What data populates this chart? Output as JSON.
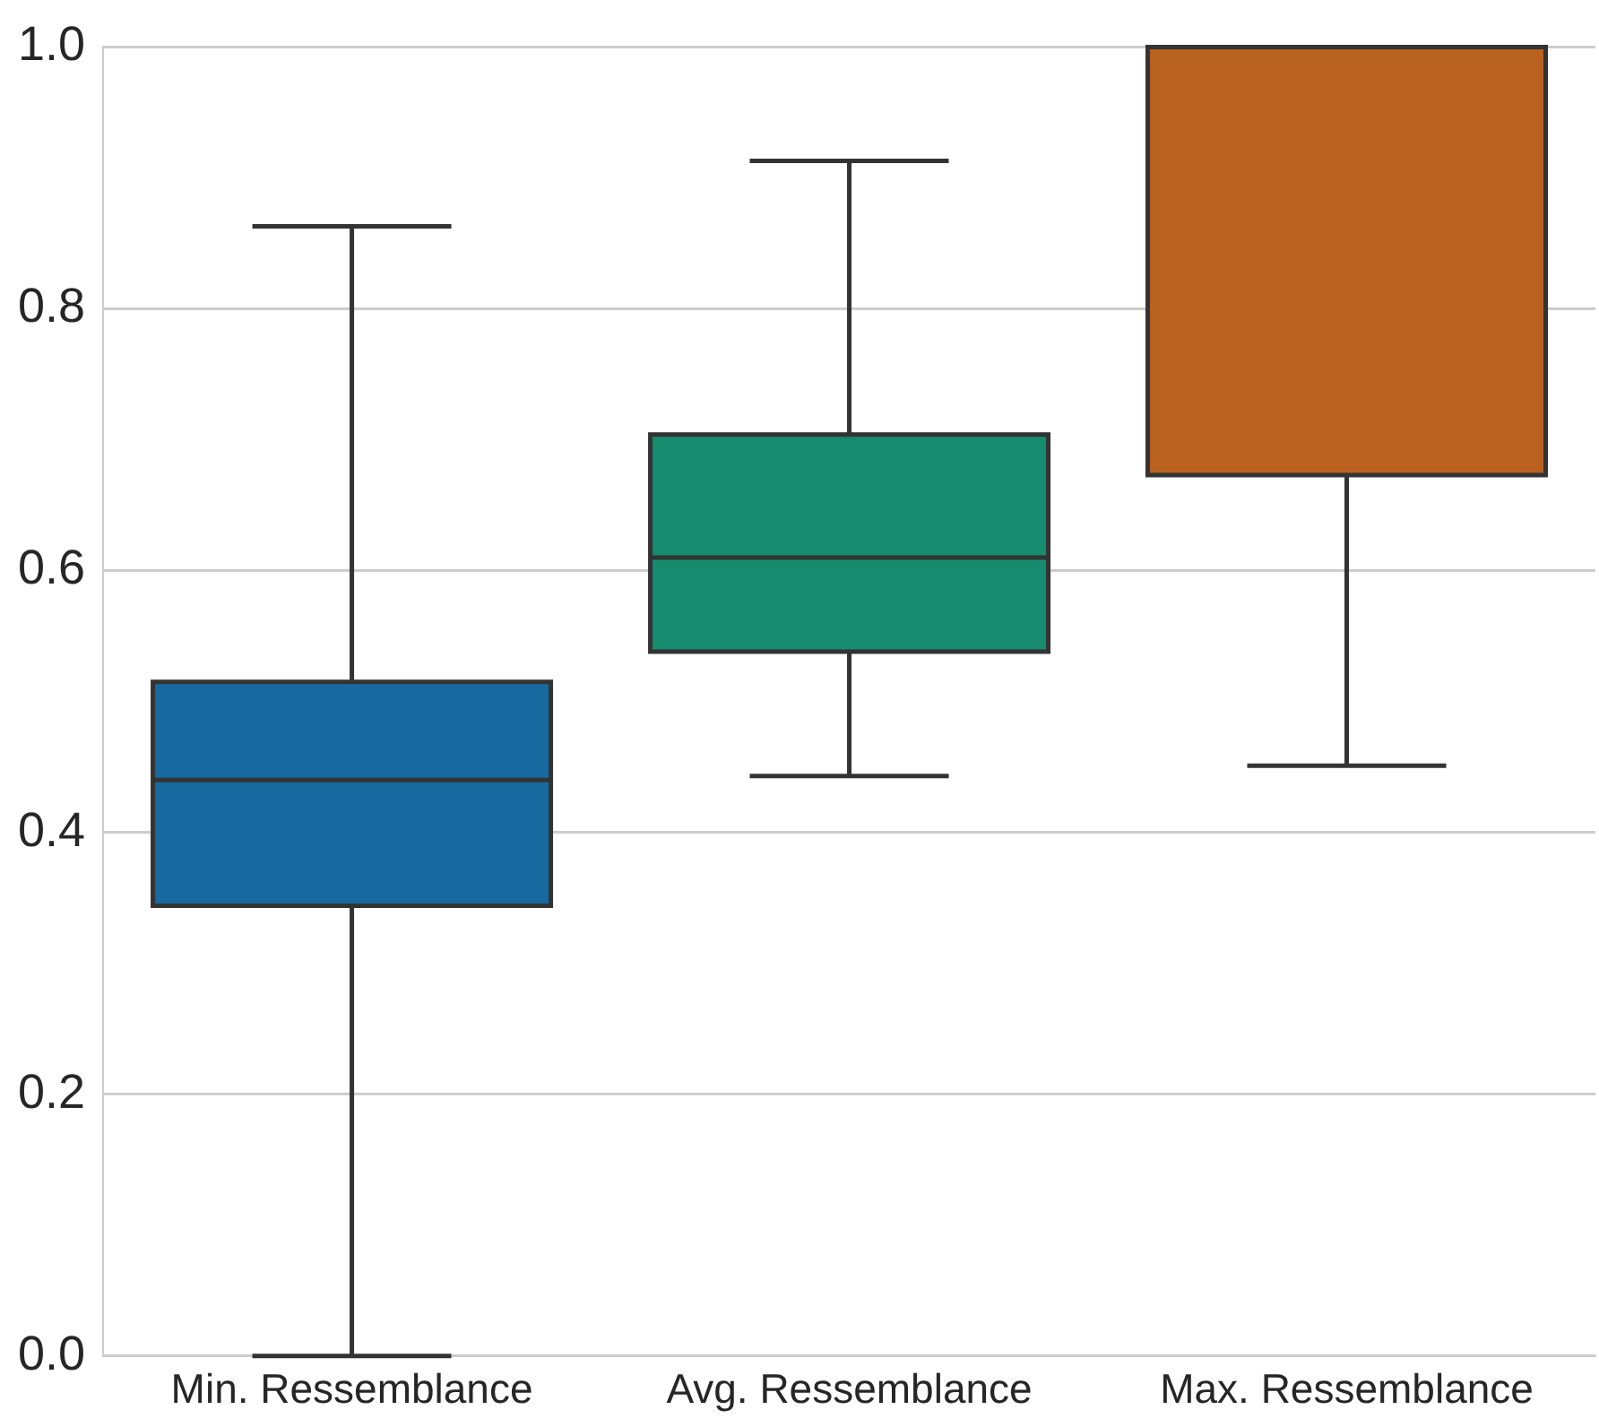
{
  "chart_data": {
    "type": "box",
    "categories": [
      "Min. Ressemblance",
      "Avg. Ressemblance",
      "Max. Ressemblance"
    ],
    "boxes": [
      {
        "low": 0,
        "q1": 0.344,
        "median": 0.44,
        "q3": 0.515,
        "high": 0.863
      },
      {
        "low": 0.443,
        "q1": 0.538,
        "median": 0.61,
        "q3": 0.704,
        "high": 0.913
      },
      {
        "low": 0.451,
        "q1": 0.673,
        "median": 1.0,
        "q3": 1.0,
        "high": 1.0
      }
    ],
    "colors": [
      "#176aa0",
      "#178b6e",
      "#b9611f"
    ],
    "ylim": [
      0,
      1
    ],
    "yticks": [
      {
        "value": 0,
        "label": "0.0"
      },
      {
        "value": 0.2,
        "label": "0.2"
      },
      {
        "value": 0.4,
        "label": "0.4"
      },
      {
        "value": 0.6,
        "label": "0.6"
      },
      {
        "value": 0.8,
        "label": "0.8"
      },
      {
        "value": 1,
        "label": "1.0"
      }
    ],
    "grid": "y"
  }
}
